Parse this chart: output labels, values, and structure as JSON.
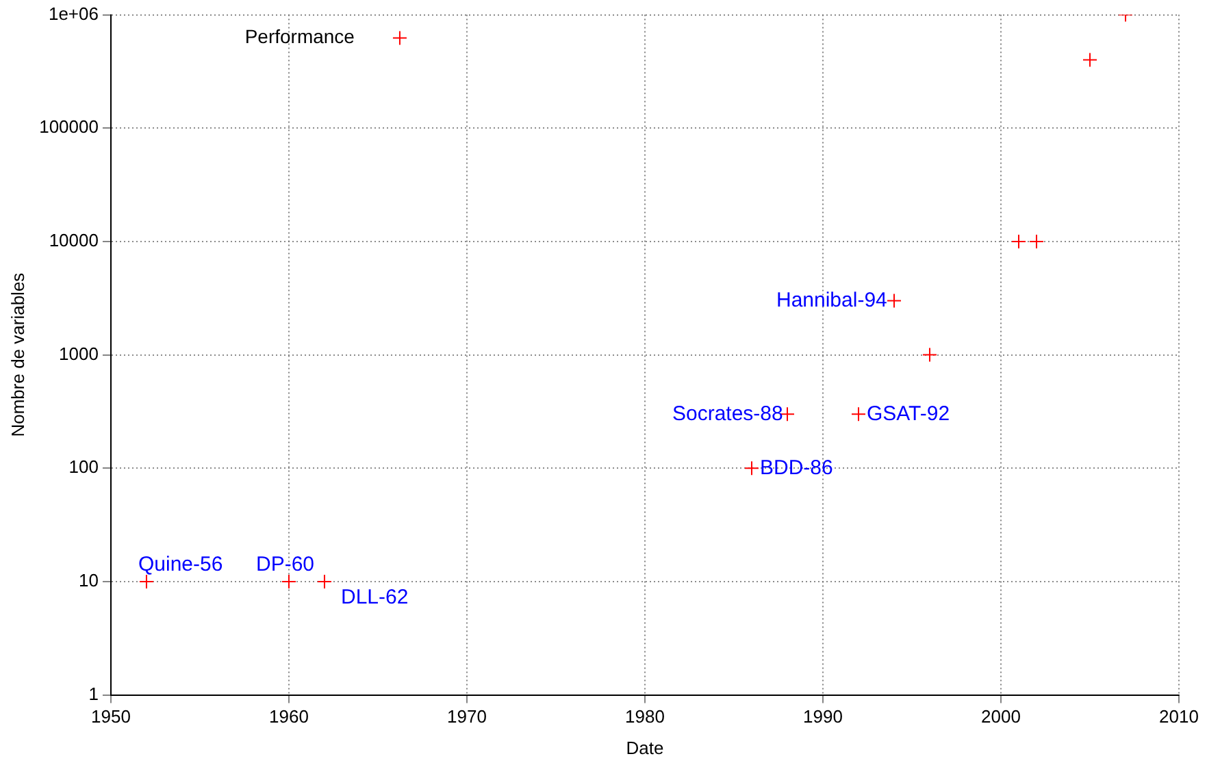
{
  "chart_data": {
    "type": "scatter",
    "xlabel": "Date",
    "ylabel": "Nombre de variables",
    "x": [
      1952,
      1960,
      1962,
      1986,
      1988,
      1992,
      1994,
      1996,
      2001,
      2002,
      2005,
      2007
    ],
    "series": [
      {
        "name": "Performance",
        "color": "#ff0000",
        "values": [
          10,
          10,
          10,
          100,
          300,
          300,
          3000,
          1000,
          10000,
          10000,
          400000,
          1000000
        ]
      }
    ],
    "xlim": [
      1950,
      2010
    ],
    "xticks": [
      1950,
      1960,
      1970,
      1980,
      1990,
      2000,
      2010
    ],
    "ylim": [
      1,
      1000000
    ],
    "yticks": [
      1,
      10,
      100,
      1000,
      10000,
      100000,
      {
        "value": 1000000,
        "label": "1e+06"
      }
    ],
    "log": "y",
    "grid": true,
    "legend": "top left",
    "marker": "cross",
    "annotations": [
      {
        "text": "Quine-56",
        "x": 1952,
        "y": 10
      },
      {
        "text": "DP-60",
        "x": 1960,
        "y": 10
      },
      {
        "text": "DLL-62",
        "x": 1962,
        "y": 10
      },
      {
        "text": "BDD-86",
        "x": 1986,
        "y": 100
      },
      {
        "text": "Socrates-88",
        "x": 1988,
        "y": 300
      },
      {
        "text": "GSAT-92",
        "x": 1992,
        "y": 300
      },
      {
        "text": "Hannibal-94",
        "x": 1994,
        "y": 3000
      }
    ]
  }
}
